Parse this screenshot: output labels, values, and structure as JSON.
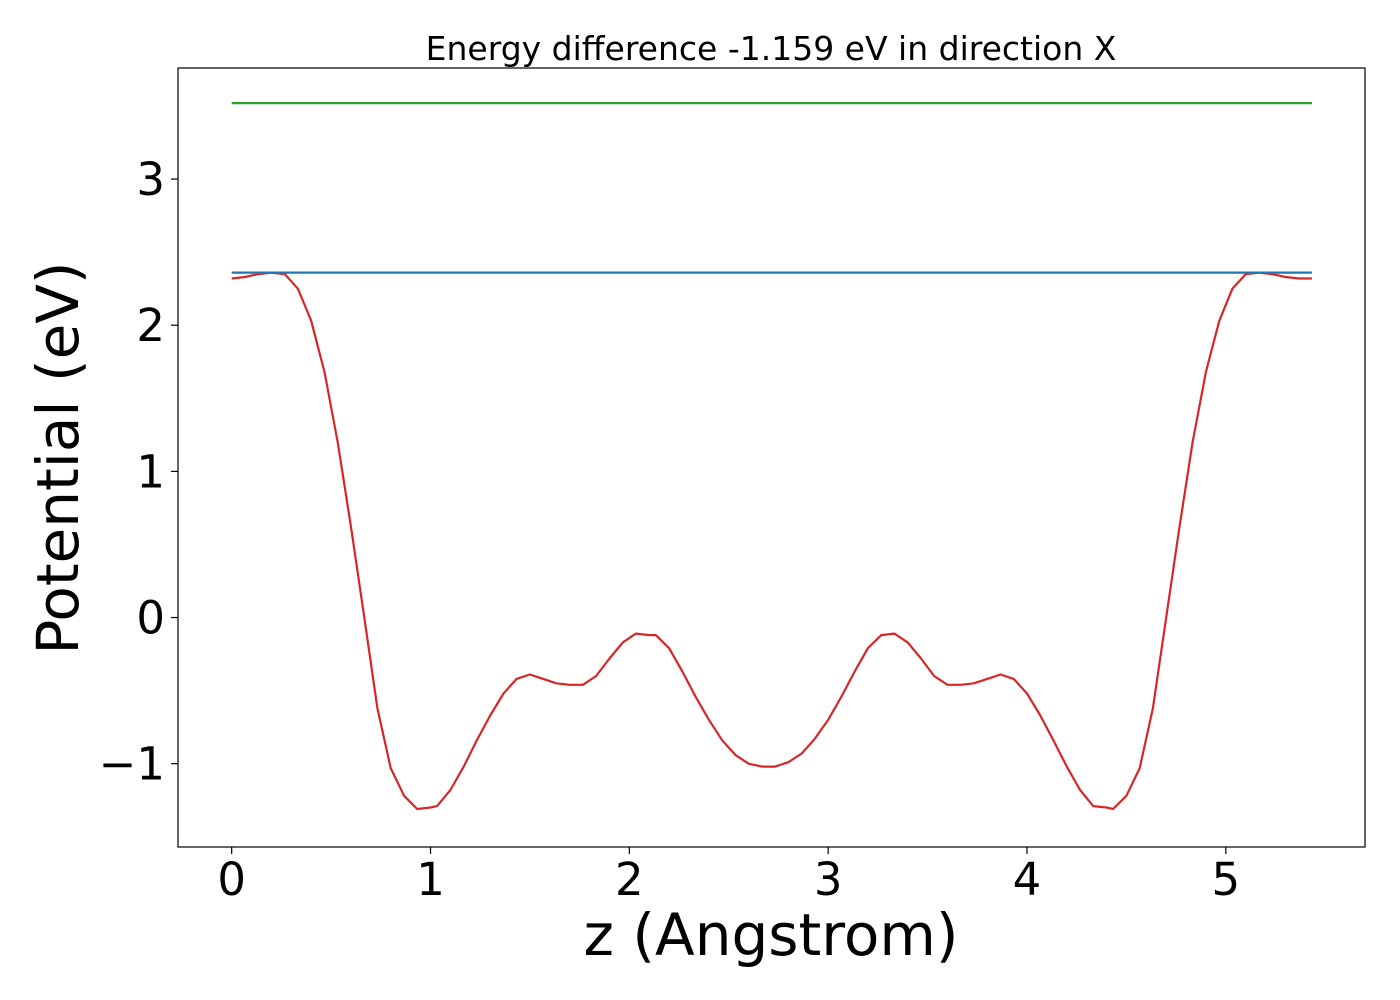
{
  "chart_data": {
    "type": "line",
    "title": "Energy difference -1.159 eV in direction X",
    "xlabel": "z (Angstrom)",
    "ylabel": "Potential (eV)",
    "xlim": [
      -0.27,
      5.7
    ],
    "ylim": [
      -1.57,
      3.76
    ],
    "x_ticks": [
      0,
      1,
      2,
      3,
      4,
      5
    ],
    "x_tick_labels": [
      "0",
      "1",
      "2",
      "3",
      "4",
      "5"
    ],
    "y_ticks": [
      -1,
      0,
      1,
      2,
      3
    ],
    "y_tick_labels": [
      "−1",
      "0",
      "1",
      "2",
      "3"
    ],
    "grid": false,
    "series": [
      {
        "color": "#d62728",
        "x": [
          0.0,
          0.067,
          0.133,
          0.2,
          0.267,
          0.333,
          0.4,
          0.467,
          0.533,
          0.6,
          0.667,
          0.733,
          0.8,
          0.867,
          0.933,
          1.0,
          1.033,
          1.1,
          1.167,
          1.233,
          1.3,
          1.367,
          1.433,
          1.5,
          1.567,
          1.633,
          1.7,
          1.767,
          1.833,
          1.9,
          1.967,
          2.033,
          2.1,
          2.133,
          2.2,
          2.267,
          2.333,
          2.4,
          2.467,
          2.533,
          2.6,
          2.667,
          2.733,
          2.8,
          2.867,
          2.933,
          3.0,
          3.067,
          3.133,
          3.2,
          3.267,
          3.333,
          3.4,
          3.467,
          3.533,
          3.6,
          3.667,
          3.733,
          3.8,
          3.867,
          3.933,
          4.0,
          4.067,
          4.133,
          4.2,
          4.267,
          4.333,
          4.4,
          4.433,
          4.5,
          4.567,
          4.633,
          4.7,
          4.767,
          4.833,
          4.9,
          4.967,
          5.033,
          5.1,
          5.167,
          5.233,
          5.3,
          5.367,
          5.433
        ],
        "y": [
          2.32,
          2.33,
          2.35,
          2.36,
          2.35,
          2.25,
          2.03,
          1.68,
          1.2,
          0.62,
          0.0,
          -0.62,
          -1.03,
          -1.22,
          -1.31,
          -1.3,
          -1.29,
          -1.18,
          -1.02,
          -0.84,
          -0.67,
          -0.52,
          -0.42,
          -0.39,
          -0.42,
          -0.45,
          -0.46,
          -0.46,
          -0.4,
          -0.28,
          -0.17,
          -0.11,
          -0.12,
          -0.12,
          -0.21,
          -0.37,
          -0.54,
          -0.7,
          -0.84,
          -0.94,
          -1.0,
          -1.02,
          -1.02,
          -0.99,
          -0.93,
          -0.83,
          -0.7,
          -0.54,
          -0.37,
          -0.21,
          -0.12,
          -0.11,
          -0.17,
          -0.28,
          -0.4,
          -0.46,
          -0.46,
          -0.45,
          -0.42,
          -0.39,
          -0.42,
          -0.52,
          -0.67,
          -0.84,
          -1.02,
          -1.18,
          -1.29,
          -1.3,
          -1.31,
          -1.22,
          -1.03,
          -0.62,
          0.0,
          0.62,
          1.2,
          1.68,
          2.03,
          2.25,
          2.35,
          2.36,
          2.35,
          2.33,
          2.32,
          2.32
        ]
      },
      {
        "color": "#1f77b4",
        "x": [
          0.0,
          5.433
        ],
        "y": [
          2.36,
          2.36
        ]
      },
      {
        "color": "#2ca02c",
        "x": [
          0.0,
          5.433
        ],
        "y": [
          3.52,
          3.52
        ]
      }
    ]
  }
}
